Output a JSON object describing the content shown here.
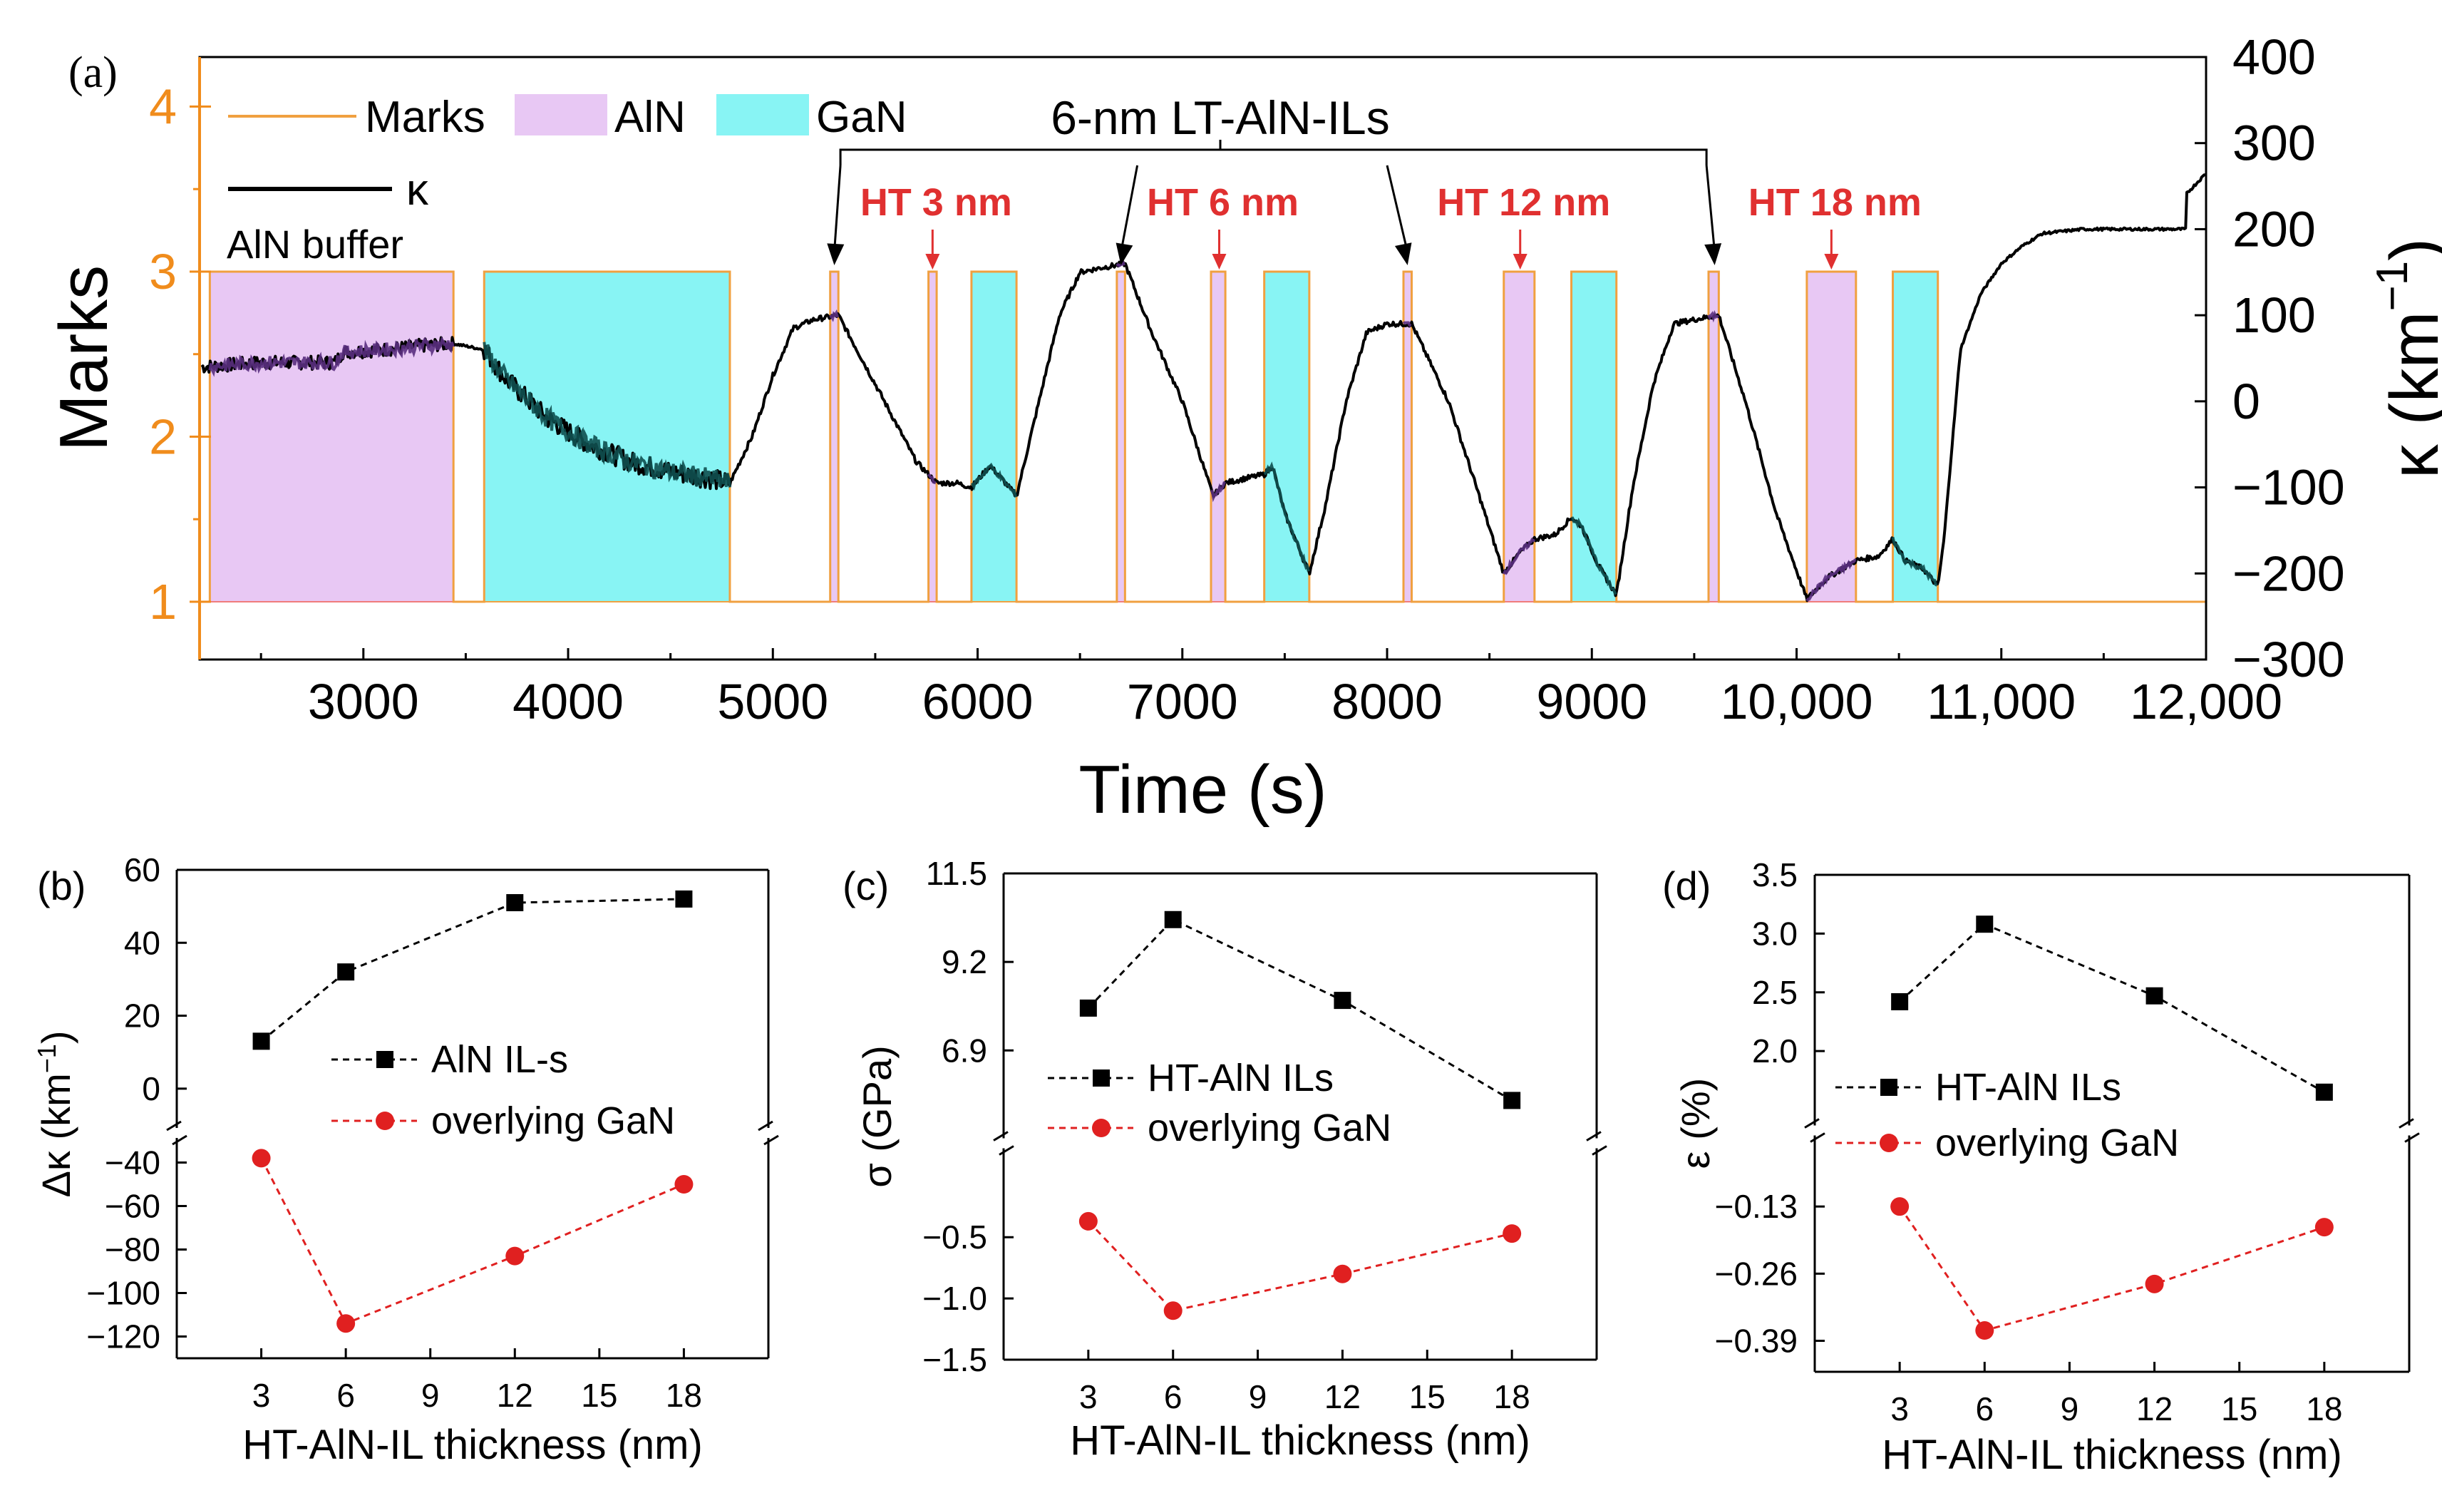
{
  "colors": {
    "aln_fill": "#e8c8f4",
    "gan_fill": "#88f4f4",
    "marks_line": "#f0a040",
    "marks_axis": "#f08c1c",
    "kappa_line": "#000000",
    "black": "#000000",
    "red": "#e02020",
    "red_text": "#e03030",
    "purple_overlay": "#5a2f80",
    "teal_overlay": "#0f5050"
  },
  "chart_data": [
    {
      "id": "a",
      "type": "line",
      "panel_label": "(a)",
      "xlabel": "Time (s)",
      "ylabel_left": "Marks",
      "ylabel_right": "κ (km",
      "ylabel_right_sup": "−1",
      "ylabel_right_close": ")",
      "xlim": [
        2200,
        12000
      ],
      "ylim_left": [
        0.65,
        4.3
      ],
      "ylim_right": [
        -300,
        400
      ],
      "xticks": [
        3000,
        4000,
        5000,
        6000,
        7000,
        8000,
        9000,
        10000,
        11000,
        12000
      ],
      "xtick_labels": [
        "3000",
        "4000",
        "5000",
        "6000",
        "7000",
        "8000",
        "9000",
        "10,000",
        "11,000",
        "12,000"
      ],
      "yticks_left": [
        1,
        2,
        3,
        4
      ],
      "ytick_labels_left": [
        "1",
        "2",
        "3",
        "4"
      ],
      "yticks_right": [
        -300,
        -200,
        -100,
        0,
        100,
        200,
        300,
        400
      ],
      "ytick_labels_right": [
        "−300",
        "−200",
        "−100",
        "0",
        "100",
        "200",
        "300",
        "400"
      ],
      "legend": [
        {
          "label": "Marks",
          "kind": "line",
          "color": "#f0a040"
        },
        {
          "label": "AlN",
          "kind": "patch",
          "color": "#e8c8f4"
        },
        {
          "label": "GaN",
          "kind": "patch",
          "color": "#88f4f4"
        },
        {
          "label": "κ",
          "kind": "line",
          "color": "#000000"
        }
      ],
      "marks_segments": [
        {
          "start": 2250,
          "end": 3440,
          "material": "AlN"
        },
        {
          "start": 3590,
          "end": 4790,
          "material": "GaN"
        },
        {
          "start": 5280,
          "end": 5320,
          "material": "AlN"
        },
        {
          "start": 5760,
          "end": 5800,
          "material": "AlN"
        },
        {
          "start": 5970,
          "end": 6190,
          "material": "GaN"
        },
        {
          "start": 6680,
          "end": 6720,
          "material": "AlN"
        },
        {
          "start": 7140,
          "end": 7210,
          "material": "AlN"
        },
        {
          "start": 7400,
          "end": 7620,
          "material": "GaN"
        },
        {
          "start": 8080,
          "end": 8120,
          "material": "AlN"
        },
        {
          "start": 8570,
          "end": 8720,
          "material": "AlN"
        },
        {
          "start": 8900,
          "end": 9120,
          "material": "GaN"
        },
        {
          "start": 9570,
          "end": 9620,
          "material": "AlN"
        },
        {
          "start": 10050,
          "end": 10290,
          "material": "AlN"
        },
        {
          "start": 10470,
          "end": 10690,
          "material": "GaN"
        }
      ],
      "kappa_points": [
        [
          2210,
          40
        ],
        [
          2500,
          45
        ],
        [
          2800,
          45
        ],
        [
          2860,
          45
        ],
        [
          2900,
          57
        ],
        [
          3100,
          60
        ],
        [
          3300,
          65
        ],
        [
          3440,
          67
        ],
        [
          3590,
          60
        ],
        [
          3700,
          25
        ],
        [
          3900,
          -20
        ],
        [
          4100,
          -50
        ],
        [
          4300,
          -70
        ],
        [
          4500,
          -82
        ],
        [
          4700,
          -90
        ],
        [
          4790,
          -95
        ],
        [
          4900,
          -40
        ],
        [
          5000,
          30
        ],
        [
          5100,
          85
        ],
        [
          5200,
          95
        ],
        [
          5320,
          100
        ],
        [
          5500,
          20
        ],
        [
          5700,
          -70
        ],
        [
          5800,
          -95
        ],
        [
          5900,
          -95
        ],
        [
          5970,
          -100
        ],
        [
          6060,
          -75
        ],
        [
          6100,
          -85
        ],
        [
          6190,
          -110
        ],
        [
          6300,
          0
        ],
        [
          6400,
          100
        ],
        [
          6500,
          150
        ],
        [
          6600,
          155
        ],
        [
          6720,
          160
        ],
        [
          6850,
          80
        ],
        [
          7000,
          0
        ],
        [
          7150,
          -110
        ],
        [
          7210,
          -95
        ],
        [
          7300,
          -90
        ],
        [
          7400,
          -85
        ],
        [
          7440,
          -75
        ],
        [
          7500,
          -130
        ],
        [
          7620,
          -200
        ],
        [
          7700,
          -120
        ],
        [
          7800,
          0
        ],
        [
          7900,
          80
        ],
        [
          8000,
          90
        ],
        [
          8120,
          90
        ],
        [
          8300,
          0
        ],
        [
          8450,
          -110
        ],
        [
          8570,
          -200
        ],
        [
          8650,
          -175
        ],
        [
          8720,
          -160
        ],
        [
          8820,
          -155
        ],
        [
          8900,
          -135
        ],
        [
          8950,
          -145
        ],
        [
          9030,
          -190
        ],
        [
          9120,
          -225
        ],
        [
          9200,
          -100
        ],
        [
          9300,
          20
        ],
        [
          9400,
          90
        ],
        [
          9500,
          95
        ],
        [
          9620,
          100
        ],
        [
          9750,
          0
        ],
        [
          9900,
          -130
        ],
        [
          10050,
          -230
        ],
        [
          10150,
          -205
        ],
        [
          10290,
          -185
        ],
        [
          10400,
          -180
        ],
        [
          10470,
          -160
        ],
        [
          10530,
          -185
        ],
        [
          10620,
          -195
        ],
        [
          10690,
          -215
        ],
        [
          10720,
          -160
        ],
        [
          10800,
          60
        ],
        [
          10900,
          125
        ],
        [
          11000,
          160
        ],
        [
          11100,
          180
        ],
        [
          11200,
          195
        ],
        [
          11400,
          200
        ],
        [
          11900,
          200
        ],
        [
          11900,
          240
        ],
        [
          12000,
          265
        ]
      ],
      "bracket_label": "6-nm  LT-AlN-ILs",
      "bracket_targets": [
        5300,
        6700,
        8100,
        9600
      ],
      "annotations": [
        {
          "label": "AlN buffer"
        },
        {
          "label": "HT 3 nm",
          "x": 5780
        },
        {
          "label": "HT 6 nm",
          "x": 7180
        },
        {
          "label": "HT 12 nm",
          "x": 8650
        },
        {
          "label": "HT 18 nm",
          "x": 10170
        }
      ]
    },
    {
      "id": "b",
      "type": "line",
      "panel_label": "(b)",
      "xlabel": "HT-AlN-IL thickness (nm)",
      "ylabel": "Δκ (km",
      "ylabel_sup": "−1",
      "ylabel_close": ")",
      "xlim": [
        0,
        21
      ],
      "xticks": [
        3,
        6,
        9,
        12,
        15,
        18
      ],
      "xtick_labels": [
        "3",
        "6",
        "9",
        "12",
        "15",
        "18"
      ],
      "upper": {
        "ylim": [
          -10,
          60
        ],
        "yticks": [
          0,
          20,
          40,
          60
        ],
        "ytick_labels": [
          "0",
          "20",
          "40",
          "60"
        ]
      },
      "lower": {
        "ylim": [
          -130,
          -30
        ],
        "yticks": [
          -40,
          -60,
          -80,
          -100,
          -120
        ],
        "ytick_labels": [
          "−40",
          "−60",
          "−80",
          "−100",
          "−120"
        ]
      },
      "x": [
        3,
        6,
        12,
        18
      ],
      "series": [
        {
          "name": "AlN IL-s",
          "values": [
            13,
            32,
            51,
            52
          ],
          "color": "#000000",
          "marker": "square",
          "axis": "upper"
        },
        {
          "name": "overlying GaN",
          "values": [
            -38,
            -114,
            -83,
            -50
          ],
          "color": "#e02020",
          "marker": "circle",
          "axis": "lower"
        }
      ]
    },
    {
      "id": "c",
      "type": "line",
      "panel_label": "(c)",
      "xlabel": "HT-AlN-IL thickness (nm)",
      "ylabel": "σ (GPa)",
      "xlim": [
        0,
        21
      ],
      "xticks": [
        3,
        6,
        9,
        12,
        15,
        18
      ],
      "xtick_labels": [
        "3",
        "6",
        "9",
        "12",
        "15",
        "18"
      ],
      "upper": {
        "ylim": [
          4.7,
          11.5
        ],
        "yticks": [
          6.9,
          9.2,
          11.5
        ],
        "ytick_labels": [
          "6.9",
          "9.2",
          "11.5"
        ]
      },
      "lower": {
        "ylim": [
          -1.5,
          0.2
        ],
        "yticks": [
          -0.5,
          -1.0,
          -1.5
        ],
        "ytick_labels": [
          "−0.5",
          "−1.0",
          "−1.5"
        ]
      },
      "x": [
        3,
        6,
        12,
        18
      ],
      "series": [
        {
          "name": "HT-AlN ILs",
          "values": [
            8.0,
            10.3,
            8.2,
            5.6
          ],
          "color": "#000000",
          "marker": "square",
          "axis": "upper"
        },
        {
          "name": "overlying GaN",
          "values": [
            -0.37,
            -1.1,
            -0.8,
            -0.47
          ],
          "color": "#e02020",
          "marker": "circle",
          "axis": "lower"
        }
      ]
    },
    {
      "id": "d",
      "type": "line",
      "panel_label": "(d)",
      "xlabel": "HT-AlN-IL thickness (nm)",
      "ylabel": "ε (%)",
      "xlim": [
        0,
        21
      ],
      "xticks": [
        3,
        6,
        9,
        12,
        15,
        18
      ],
      "xtick_labels": [
        "3",
        "6",
        "9",
        "12",
        "15",
        "18"
      ],
      "upper": {
        "ylim": [
          1.4,
          3.5
        ],
        "yticks": [
          2.0,
          2.5,
          3.0,
          3.5
        ],
        "ytick_labels": [
          "2.0",
          "2.5",
          "3.0",
          "3.5"
        ]
      },
      "lower": {
        "ylim": [
          -0.45,
          0.0
        ],
        "yticks": [
          -0.13,
          -0.26,
          -0.39
        ],
        "ytick_labels": [
          "−0.13",
          "−0.26",
          "−0.39"
        ]
      },
      "x": [
        3,
        6,
        12,
        18
      ],
      "series": [
        {
          "name": "HT-AlN ILs",
          "values": [
            2.42,
            3.08,
            2.47,
            1.65
          ],
          "color": "#000000",
          "marker": "square",
          "axis": "upper"
        },
        {
          "name": "overlying GaN",
          "values": [
            -0.13,
            -0.37,
            -0.28,
            -0.17
          ],
          "color": "#e02020",
          "marker": "circle",
          "axis": "lower"
        }
      ]
    }
  ]
}
